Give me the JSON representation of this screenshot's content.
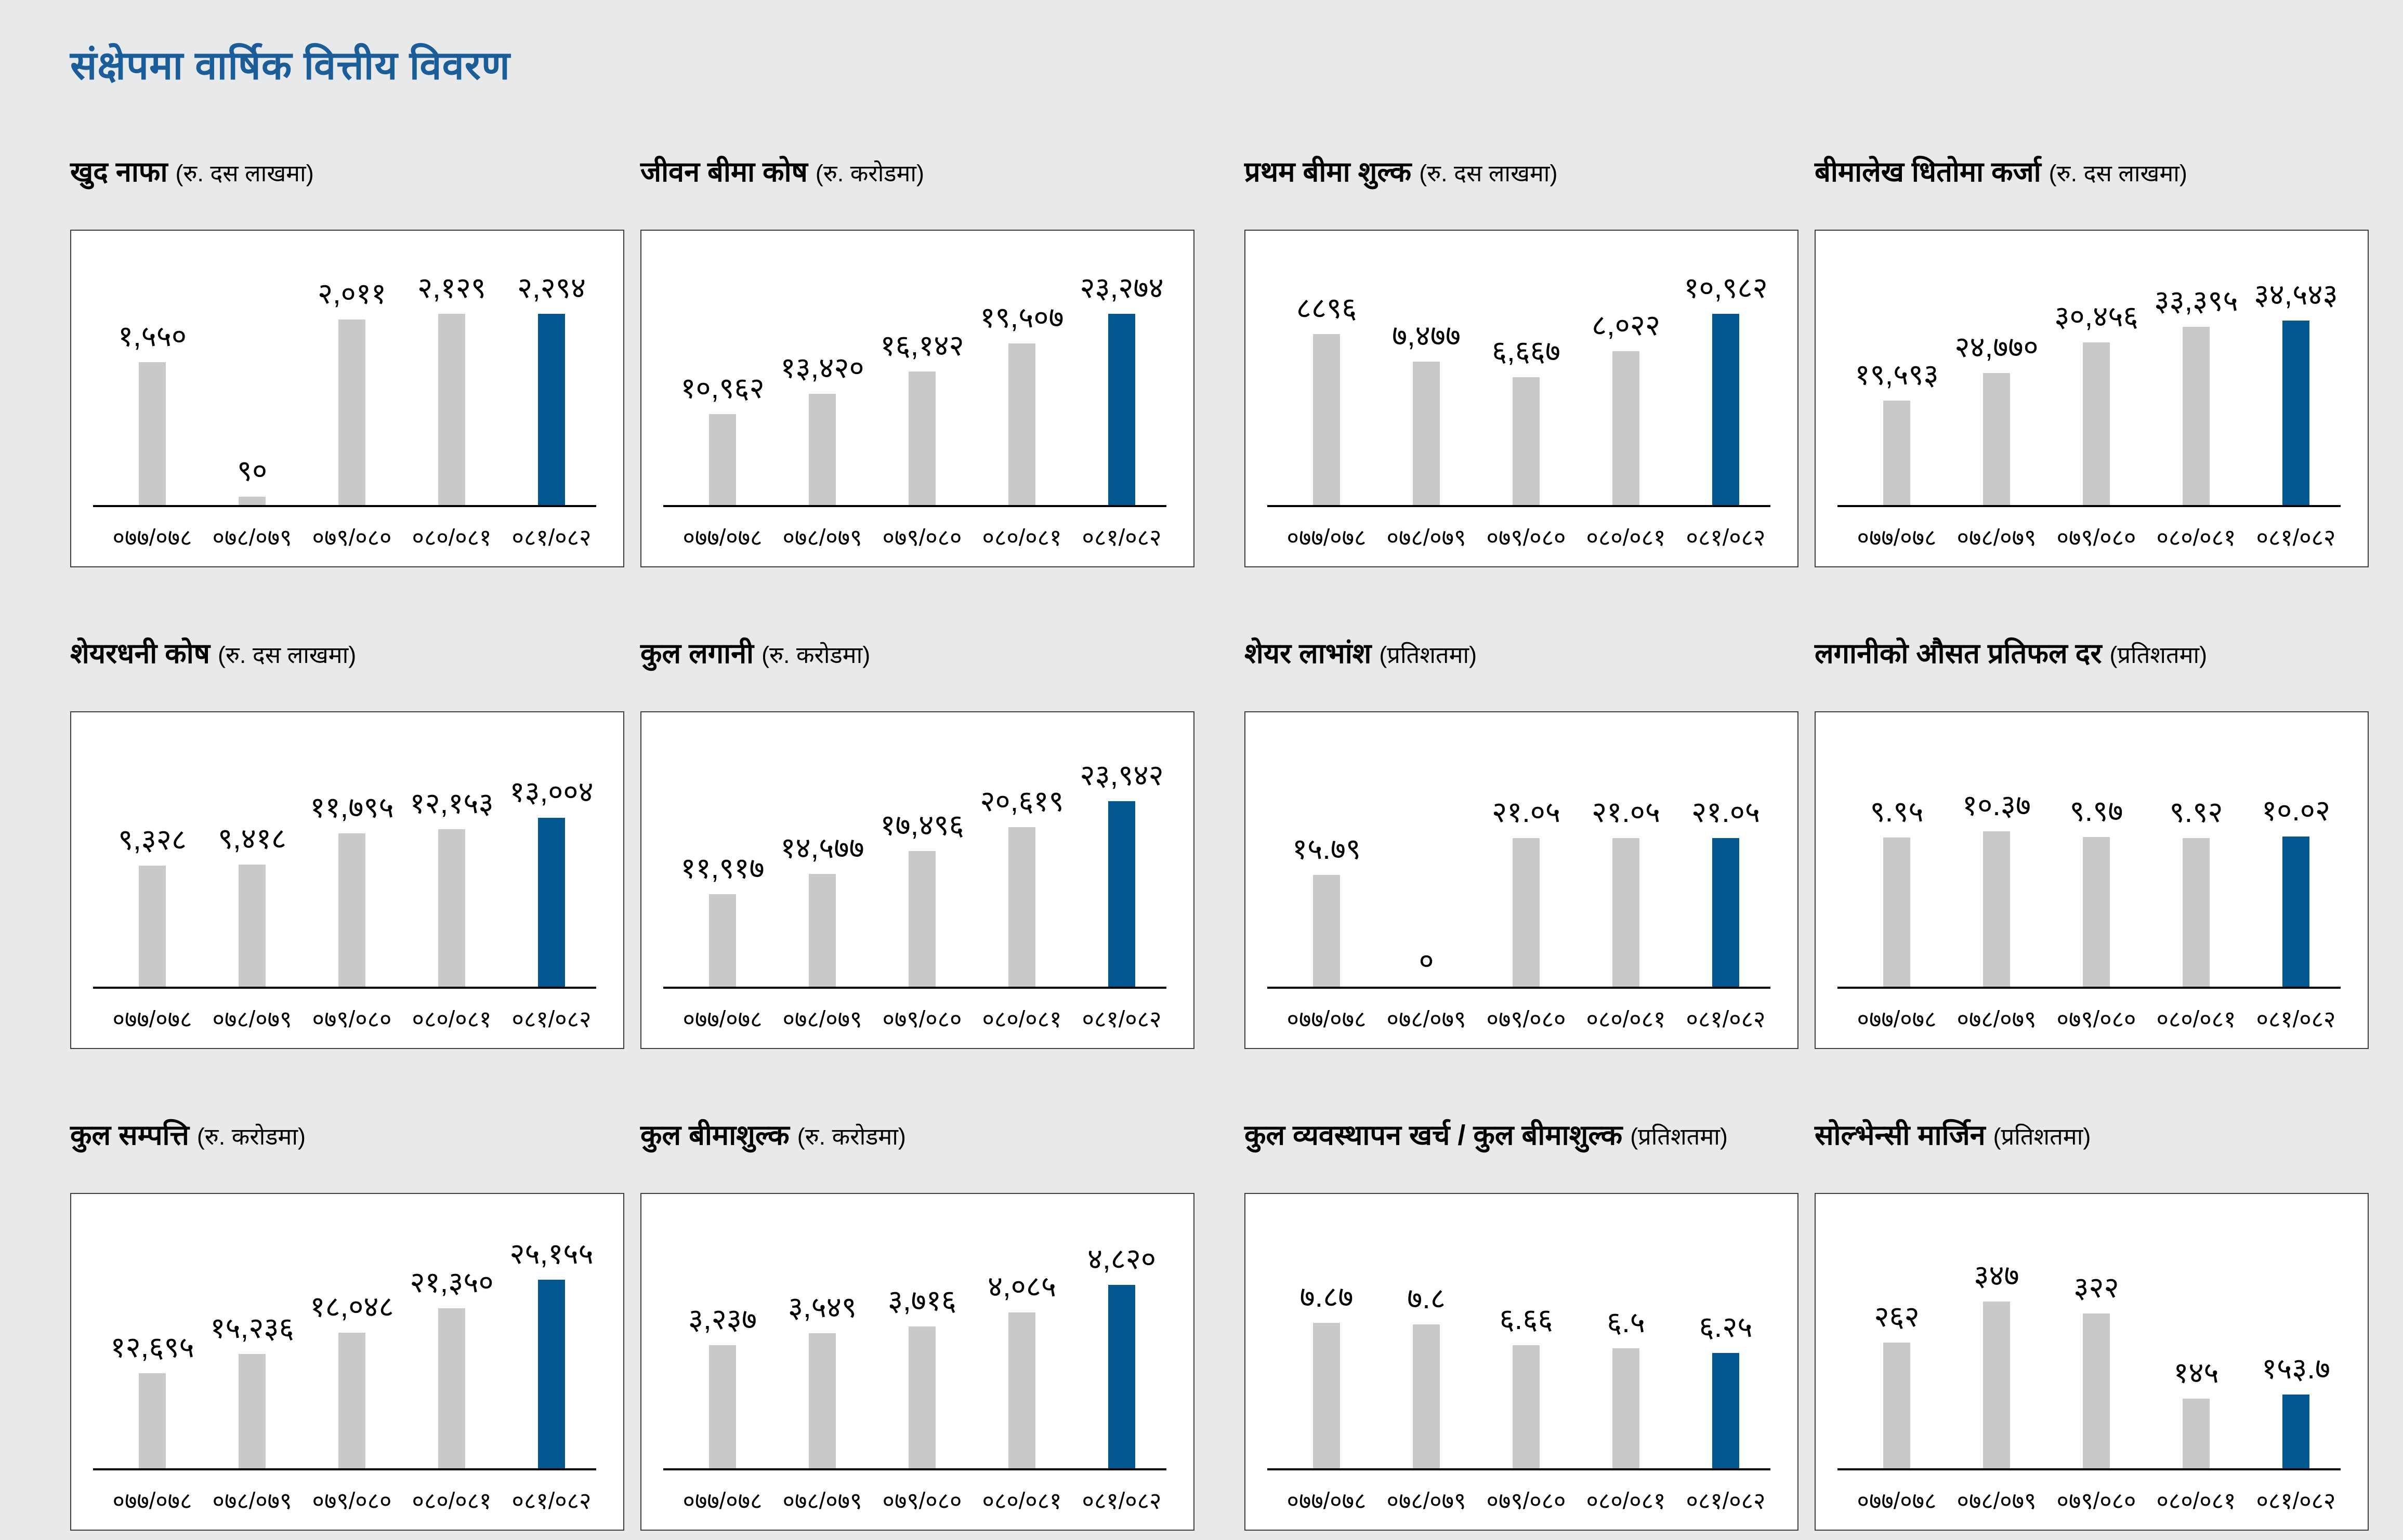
{
  "page": {
    "title": "संक्षेपमा वार्षिक वित्तीय विवरण"
  },
  "colors": {
    "accent_blue": "#02578f",
    "bar_gray": "#c8c9cb",
    "title_blue": "#1b5d98",
    "page_background": "#e8e9eb",
    "panel_background": "#ffffff",
    "panel_border": "#3e3e3e"
  },
  "years": [
    "०७७/०७८",
    "०७८/०७९",
    "०७९/०८०",
    "०८०/०८१",
    "०८१/०८२"
  ],
  "chart_data": [
    {
      "type": "bar",
      "title": "खुद नाफा",
      "unit": "(रु. दस लाखमा)",
      "categories": [
        "०७७/०७८",
        "०७८/०७९",
        "०७९/०८०",
        "०८०/०८१",
        "०८१/०८२"
      ],
      "values": [
        1550,
        90,
        2011,
        2129,
        2294
      ],
      "labels": [
        "१,५५०",
        "९०",
        "२,०११",
        "२,१२९",
        "२,२९४"
      ],
      "ylim": [
        0,
        2600
      ],
      "highlight_last": true,
      "grid": false,
      "legend": "none"
    },
    {
      "type": "bar",
      "title": "जीवन बीमा कोष",
      "unit": "(रु. करोडमा)",
      "categories": [
        "०७७/०७८",
        "०७८/०७९",
        "०७९/०८०",
        "०८०/०८१",
        "०८१/०८२"
      ],
      "values": [
        10962,
        13420,
        16142,
        19507,
        23274
      ],
      "labels": [
        "१०,९६२",
        "१३,४२०",
        "१६,१४२",
        "१९,५०७",
        "२३,२७४"
      ],
      "ylim": [
        0,
        29000
      ],
      "highlight_last": true,
      "grid": false,
      "legend": "none"
    },
    {
      "type": "bar",
      "title": "प्रथम बीमा शुल्क",
      "unit": "(रु. दस लाखमा)",
      "categories": [
        "०७७/०७८",
        "०७८/०७९",
        "०७९/०८०",
        "०८०/०८१",
        "०८१/०८२"
      ],
      "values": [
        8896,
        7477,
        6667,
        8022,
        10982
      ],
      "labels": [
        "८८९६",
        "७,४७७",
        "६,६६७",
        "८,०२२",
        "१०,९८२"
      ],
      "ylim": [
        0,
        12500
      ],
      "highlight_last": true,
      "grid": false,
      "legend": "none"
    },
    {
      "type": "bar",
      "title": "बीमालेख धितोमा कर्जा",
      "unit": "(रु. दस लाखमा)",
      "categories": [
        "०७७/०७८",
        "०७८/०७९",
        "०७९/०८०",
        "०८०/०८१",
        "०८१/०८२"
      ],
      "values": [
        19593,
        24770,
        30456,
        33395,
        34543
      ],
      "labels": [
        "१९,५९३",
        "२४,७७०",
        "३०,४५६",
        "३३,३९५",
        "३४,५४३"
      ],
      "ylim": [
        0,
        45000
      ],
      "highlight_last": true,
      "grid": false,
      "legend": "none"
    },
    {
      "type": "bar",
      "title": "शेयरधनी कोष",
      "unit": "(रु. दस लाखमा)",
      "categories": [
        "०७७/०७८",
        "०७८/०७९",
        "०७९/०८०",
        "०८०/०८१",
        "०८१/०८२"
      ],
      "values": [
        9328,
        9418,
        11795,
        12153,
        13004
      ],
      "labels": [
        "९,३२८",
        "९,४१८",
        "११,७९५",
        "१२,१५३",
        "१३,००४"
      ],
      "ylim": [
        0,
        18500
      ],
      "highlight_last": true,
      "grid": false,
      "legend": "none"
    },
    {
      "type": "bar",
      "title": "कुल लगानी",
      "unit": "(रु. करोडमा)",
      "categories": [
        "०७७/०७८",
        "०७८/०७९",
        "०७९/०८०",
        "०८०/०८१",
        "०८१/०८२"
      ],
      "values": [
        11917,
        14577,
        17496,
        20619,
        23942
      ],
      "labels": [
        "११,९१७",
        "१४,५७७",
        "१७,४९६",
        "२०,६१९",
        "२३,९४२"
      ],
      "ylim": [
        0,
        31000
      ],
      "highlight_last": true,
      "grid": false,
      "legend": "none"
    },
    {
      "type": "bar",
      "title": "शेयर लाभांश",
      "unit": "(प्रतिशतमा)",
      "categories": [
        "०७७/०७८",
        "०७८/०७९",
        "०७९/०८०",
        "०८०/०८१",
        "०८१/०८२"
      ],
      "values": [
        15.79,
        0,
        21.05,
        21.05,
        21.05
      ],
      "labels": [
        "१५.७९",
        "०",
        "२१.०५",
        "२१.०५",
        "२१.०५"
      ],
      "ylim": [
        0,
        34
      ],
      "highlight_last": true,
      "grid": false,
      "legend": "none"
    },
    {
      "type": "bar",
      "title": "लगानीको औसत प्रतिफल दर",
      "unit": "(प्रतिशतमा)",
      "categories": [
        "०७७/०७८",
        "०७८/०७९",
        "०७९/०८०",
        "०८०/०८१",
        "०८१/०८२"
      ],
      "values": [
        9.95,
        10.37,
        9.97,
        9.92,
        10.02
      ],
      "labels": [
        "९.९५",
        "१०.३७",
        "९.९७",
        "९.९२",
        "१०.०२"
      ],
      "ylim": [
        0,
        16
      ],
      "highlight_last": true,
      "grid": false,
      "legend": "none"
    },
    {
      "type": "bar",
      "title": "कुल सम्पत्ति",
      "unit": "(रु. करोडमा)",
      "categories": [
        "०७७/०७८",
        "०७८/०७९",
        "०७९/०८०",
        "०८०/०८१",
        "०८१/०८२"
      ],
      "values": [
        12695,
        15236,
        18048,
        21350,
        25155
      ],
      "labels": [
        "१२,६९५",
        "१५,२३६",
        "१८,०४८",
        "२१,३५०",
        "२५,१५५"
      ],
      "ylim": [
        0,
        32000
      ],
      "highlight_last": true,
      "grid": false,
      "legend": "none"
    },
    {
      "type": "bar",
      "title": "कुल बीमाशुल्क",
      "unit": "(रु. करोडमा)",
      "categories": [
        "०७७/०७८",
        "०७८/०७९",
        "०७९/०८०",
        "०८०/०८१",
        "०८१/०८२"
      ],
      "values": [
        3237,
        3549,
        3716,
        4085,
        4820
      ],
      "labels": [
        "३,२३७",
        "३,५४९",
        "३,७१६",
        "४,०८५",
        "४,८२०"
      ],
      "ylim": [
        0,
        6300
      ],
      "highlight_last": true,
      "grid": false,
      "legend": "none"
    },
    {
      "type": "bar",
      "title": "कुल व्यवस्थापन खर्च / कुल बीमाशुल्क",
      "unit": "(प्रतिशतमा)",
      "categories": [
        "०७७/०७८",
        "०७८/०७९",
        "०७९/०८०",
        "०८०/०८१",
        "०८१/०८२"
      ],
      "values": [
        7.87,
        7.8,
        6.66,
        6.5,
        6.25
      ],
      "labels": [
        "७.८७",
        "७.८",
        "६.६६",
        "६.५",
        "६.२५"
      ],
      "ylim": [
        0,
        13
      ],
      "highlight_last": true,
      "grid": false,
      "legend": "none"
    },
    {
      "type": "bar",
      "title": "सोल्भेन्सी मार्जिन",
      "unit": "(प्रतिशतमा)",
      "categories": [
        "०७७/०७८",
        "०७८/०७९",
        "०७९/०८०",
        "०८०/०८१",
        "०८१/०८२"
      ],
      "values": [
        262,
        347,
        322,
        145,
        153.7
      ],
      "labels": [
        "२६२",
        "३४७",
        "३२२",
        "१४५",
        "१५३.७"
      ],
      "ylim": [
        0,
        500
      ],
      "highlight_last": true,
      "grid": false,
      "legend": "none"
    }
  ]
}
